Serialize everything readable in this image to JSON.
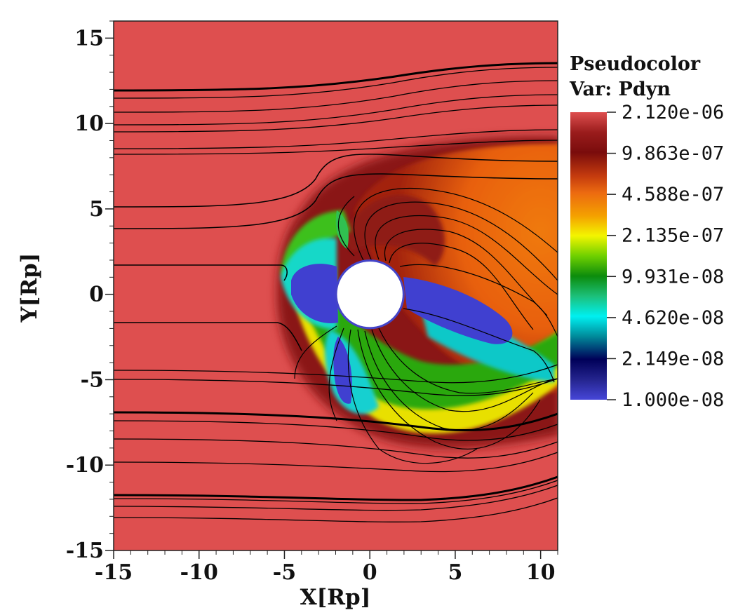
{
  "chart_data": {
    "type": "heatmap",
    "title": "",
    "xlabel": "X[Rp]",
    "ylabel": "Y[Rp]",
    "xlim": [
      -15,
      11
    ],
    "ylim": [
      -15,
      16
    ],
    "x_ticks": [
      -15,
      -10,
      -5,
      0,
      5,
      10
    ],
    "y_ticks": [
      -15,
      -10,
      -5,
      0,
      5,
      10,
      15
    ],
    "x_tick_labels": [
      "-15",
      "-10",
      "-5",
      "0",
      "5",
      "10"
    ],
    "y_tick_labels": [
      "-15",
      "-10",
      "-5",
      "0",
      "5",
      "10",
      "15"
    ],
    "variable": "Pdyn",
    "planet_radius": 2,
    "streamlines": true,
    "colorbar": {
      "title_line1": "Pseudocolor",
      "title_line2": "Var: Pdyn",
      "max": 2.12e-06,
      "min": 1e-08,
      "labels": [
        "2.120e-06",
        "9.863e-07",
        "4.588e-07",
        "2.135e-07",
        "9.931e-08",
        "4.620e-08",
        "2.149e-08",
        "1.000e-08"
      ],
      "colors": [
        "#de4f4f",
        "#7a0c0c",
        "#ec6a10",
        "#f3f500",
        "#0c8c0c",
        "#00f0f0",
        "#000058",
        "#4646d8"
      ]
    }
  }
}
